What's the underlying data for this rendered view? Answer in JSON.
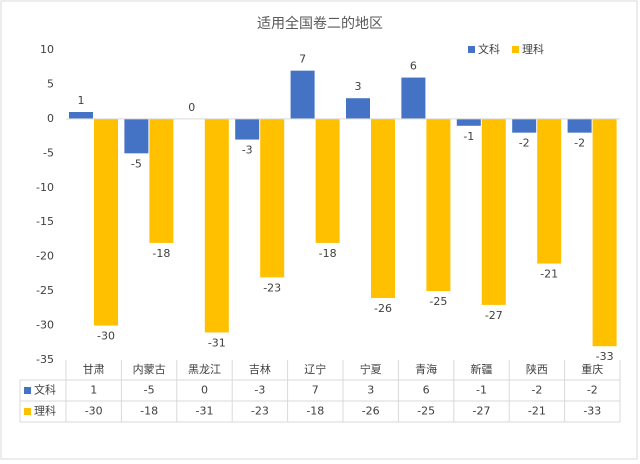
{
  "chart_data": {
    "type": "bar",
    "title": "适用全国卷二的地区",
    "categories": [
      "甘肃",
      "内蒙古",
      "黑龙江",
      "吉林",
      "辽宁",
      "宁夏",
      "青海",
      "新疆",
      "陕西",
      "重庆"
    ],
    "series": [
      {
        "name": "文科",
        "color": "#4472c4",
        "values": [
          1,
          -5,
          0,
          -3,
          7,
          3,
          6,
          -1,
          -2,
          -2
        ]
      },
      {
        "name": "理科",
        "color": "#ffc000",
        "values": [
          -30,
          -18,
          -31,
          -23,
          -18,
          -26,
          -25,
          -27,
          -21,
          -33
        ]
      }
    ],
    "ylim": [
      -35,
      10
    ],
    "yticks": [
      -35,
      -30,
      -25,
      -20,
      -15,
      -10,
      -5,
      0,
      5,
      10
    ],
    "grid": false,
    "legend": "top-right",
    "data_labels": true,
    "data_table": true
  }
}
